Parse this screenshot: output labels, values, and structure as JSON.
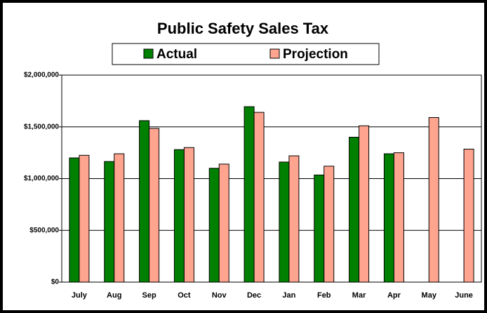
{
  "chart_data": {
    "type": "bar",
    "title": "Public Safety Sales Tax",
    "categories": [
      "July",
      "Aug",
      "Sep",
      "Oct",
      "Nov",
      "Dec",
      "Jan",
      "Feb",
      "Mar",
      "Apr",
      "May",
      "June"
    ],
    "series": [
      {
        "name": "Actual",
        "color": "#008000",
        "values": [
          1200000,
          1165000,
          1560000,
          1280000,
          1100000,
          1695000,
          1160000,
          1035000,
          1400000,
          1240000,
          null,
          null
        ]
      },
      {
        "name": "Projection",
        "color": "#ffa58f",
        "values": [
          1225000,
          1240000,
          1485000,
          1300000,
          1140000,
          1640000,
          1220000,
          1120000,
          1510000,
          1250000,
          1590000,
          1285000
        ]
      }
    ],
    "ylim": [
      0,
      2000000
    ],
    "yticks": [
      {
        "value": 0,
        "label": "$0"
      },
      {
        "value": 500000,
        "label": "$500,000"
      },
      {
        "value": 1000000,
        "label": "$1,000,000"
      },
      {
        "value": 1500000,
        "label": "$1,500,000"
      },
      {
        "value": 2000000,
        "label": "$2,000,000"
      }
    ],
    "grid": true,
    "legend": "top"
  }
}
